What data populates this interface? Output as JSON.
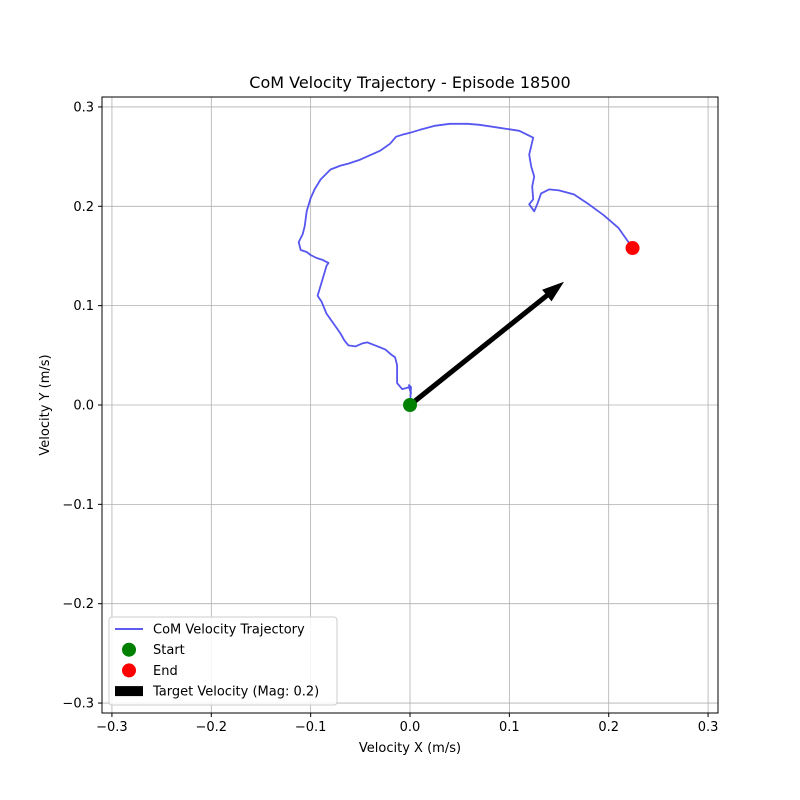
{
  "chart_data": {
    "type": "line",
    "title": "CoM Velocity Trajectory - Episode 18500",
    "xlabel": "Velocity X (m/s)",
    "ylabel": "Velocity Y (m/s)",
    "xlim": [
      -0.31,
      0.31
    ],
    "ylim": [
      -0.31,
      0.31
    ],
    "xticks": [
      -0.3,
      -0.2,
      -0.1,
      0.0,
      0.1,
      0.2,
      0.3
    ],
    "yticks": [
      -0.3,
      -0.2,
      -0.1,
      0.0,
      0.1,
      0.2,
      0.3
    ],
    "xtick_labels": [
      "−0.3",
      "−0.2",
      "−0.1",
      "0.0",
      "0.1",
      "0.2",
      "0.3"
    ],
    "ytick_labels": [
      "−0.3",
      "−0.2",
      "−0.1",
      "0.0",
      "0.1",
      "0.2",
      "0.3"
    ],
    "grid": true,
    "legend_position": "lower-left",
    "series": [
      {
        "name": "CoM Velocity Trajectory",
        "kind": "line",
        "color": "#4444ee",
        "x": [
          0.0,
          0.001,
          -0.001,
          0.001,
          -0.001,
          -0.004,
          -0.008,
          -0.013,
          -0.013,
          -0.015,
          -0.018,
          -0.025,
          -0.035,
          -0.043,
          -0.048,
          -0.055,
          -0.062,
          -0.066,
          -0.07,
          -0.077,
          -0.084,
          -0.089,
          -0.093,
          -0.087,
          -0.084,
          -0.082,
          -0.088,
          -0.094,
          -0.1,
          -0.104,
          -0.11,
          -0.112,
          -0.108,
          -0.106,
          -0.104,
          -0.1,
          -0.096,
          -0.09,
          -0.08,
          -0.07,
          -0.062,
          -0.05,
          -0.03,
          -0.02,
          -0.014,
          -0.008,
          0.0,
          0.01,
          0.025,
          0.04,
          0.058,
          0.07,
          0.09,
          0.11,
          0.124,
          0.12,
          0.122,
          0.125,
          0.123,
          0.124,
          0.12,
          0.125,
          0.128,
          0.132,
          0.14,
          0.15,
          0.165,
          0.18,
          0.195,
          0.21,
          0.224
        ],
        "y": [
          0.0,
          0.018,
          0.02,
          0.012,
          0.018,
          0.017,
          0.016,
          0.022,
          0.04,
          0.048,
          0.05,
          0.056,
          0.06,
          0.063,
          0.062,
          0.059,
          0.06,
          0.065,
          0.072,
          0.082,
          0.092,
          0.104,
          0.11,
          0.13,
          0.14,
          0.143,
          0.146,
          0.148,
          0.151,
          0.154,
          0.156,
          0.164,
          0.172,
          0.18,
          0.195,
          0.208,
          0.217,
          0.227,
          0.237,
          0.241,
          0.243,
          0.247,
          0.256,
          0.263,
          0.27,
          0.272,
          0.274,
          0.277,
          0.281,
          0.283,
          0.283,
          0.282,
          0.279,
          0.276,
          0.269,
          0.252,
          0.24,
          0.23,
          0.22,
          0.207,
          0.202,
          0.195,
          0.202,
          0.213,
          0.217,
          0.216,
          0.212,
          0.202,
          0.191,
          0.178,
          0.158
        ]
      },
      {
        "name": "Start",
        "kind": "marker",
        "color": "#008000",
        "x": [
          0.0
        ],
        "y": [
          0.0
        ]
      },
      {
        "name": "End",
        "kind": "marker",
        "color": "#ff0000",
        "x": [
          0.224
        ],
        "y": [
          0.158
        ]
      },
      {
        "name": "Target Velocity (Mag: 0.2)",
        "kind": "arrow",
        "color": "#000000",
        "x": [
          0.0,
          0.155
        ],
        "y": [
          0.0,
          0.124
        ]
      }
    ]
  }
}
